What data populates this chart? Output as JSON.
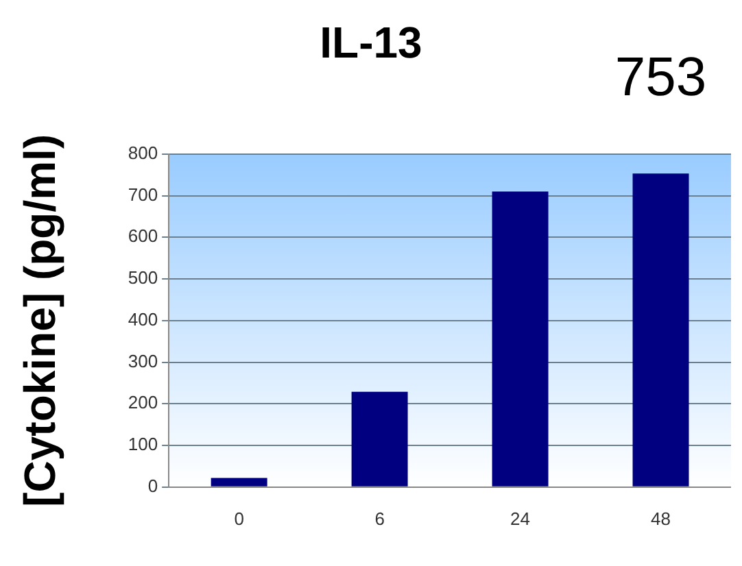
{
  "chart_data": {
    "type": "bar",
    "title": "IL-13",
    "ylabel": "[Cytokine] (pg/ml)",
    "categories": [
      "0",
      "6",
      "24",
      "48"
    ],
    "values": [
      22,
      229,
      710,
      753
    ],
    "color": "#000080",
    "ylim": [
      0,
      800
    ],
    "yticks": [
      0,
      100,
      200,
      300,
      400,
      500,
      600,
      700,
      800
    ],
    "grid": "y",
    "legend": false,
    "annotations": [
      {
        "text": "753",
        "x": "48",
        "y": 753
      }
    ]
  }
}
